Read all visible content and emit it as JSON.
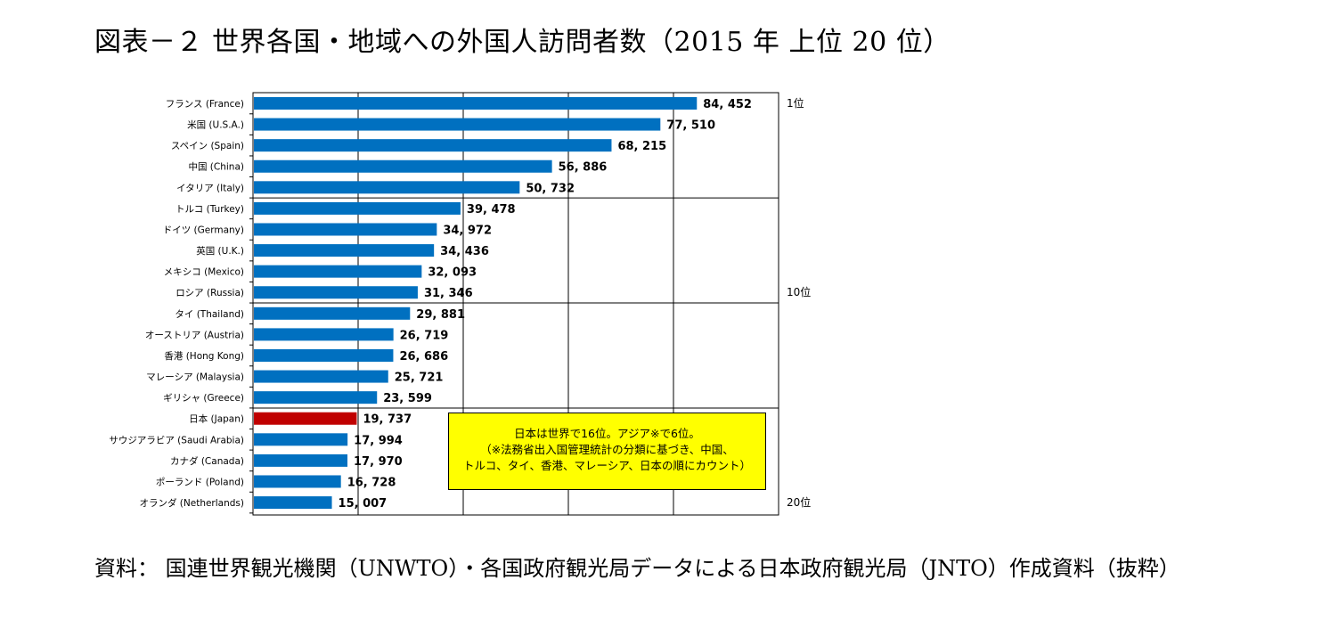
{
  "title": "図表－２ 世界各国・地域への外国人訪問者数（2015 年 上位 20 位）",
  "source": "資料： 国連世界観光機関（UNWTO）・各国政府観光局データによる日本政府観光局（JNTO）作成資料（抜粋）",
  "note": {
    "lines": [
      "日本は世界で16位。アジア※で6位。",
      "（※法務省出入国管理統計の分類に基づき、中国、",
      "トルコ、タイ、香港、マレーシア、日本の順にカウント）"
    ]
  },
  "rank_markers": [
    {
      "label": "1位",
      "index": 0
    },
    {
      "label": "10位",
      "index": 9
    },
    {
      "label": "20位",
      "index": 19
    }
  ],
  "colors": {
    "bar": "#0070c0",
    "highlight": "#c00000",
    "note_bg": "#ffff00"
  },
  "chart_data": {
    "type": "bar",
    "orientation": "horizontal",
    "categories": [
      "フランス (France)",
      "米国 (U.S.A.)",
      "スペイン (Spain)",
      "中国 (China)",
      "イタリア (Italy)",
      "トルコ (Turkey)",
      "ドイツ (Germany)",
      "英国 (U.K.)",
      "メキシコ (Mexico)",
      "ロシア (Russia)",
      "タイ (Thailand)",
      "オーストリア (Austria)",
      "香港 (Hong Kong)",
      "マレーシア (Malaysia)",
      "ギリシャ (Greece)",
      "日本 (Japan)",
      "サウジアラビア (Saudi Arabia)",
      "カナダ (Canada)",
      "ポーランド (Poland)",
      "オランダ (Netherlands)"
    ],
    "values": [
      84452,
      77510,
      68215,
      56886,
      50732,
      39478,
      34972,
      34436,
      32093,
      31346,
      29881,
      26719,
      26686,
      25721,
      23599,
      19737,
      17994,
      17970,
      16728,
      15007
    ],
    "value_labels": [
      "84, 452",
      "77, 510",
      "68, 215",
      "56, 886",
      "50, 732",
      "39, 478",
      "34, 972",
      "34, 436",
      "32, 093",
      "31, 346",
      "29, 881",
      "26, 719",
      "26, 686",
      "25, 721",
      "23, 599",
      "19, 737",
      "17, 994",
      "17, 970",
      "16, 728",
      "15, 007"
    ],
    "highlight_index": 15,
    "xlim": [
      0,
      100000
    ],
    "x_gridlines": [
      20000,
      40000,
      60000,
      80000
    ],
    "row_group_separators_after": [
      4,
      9,
      14
    ],
    "grid": true,
    "title": "",
    "xlabel": "",
    "ylabel": ""
  }
}
